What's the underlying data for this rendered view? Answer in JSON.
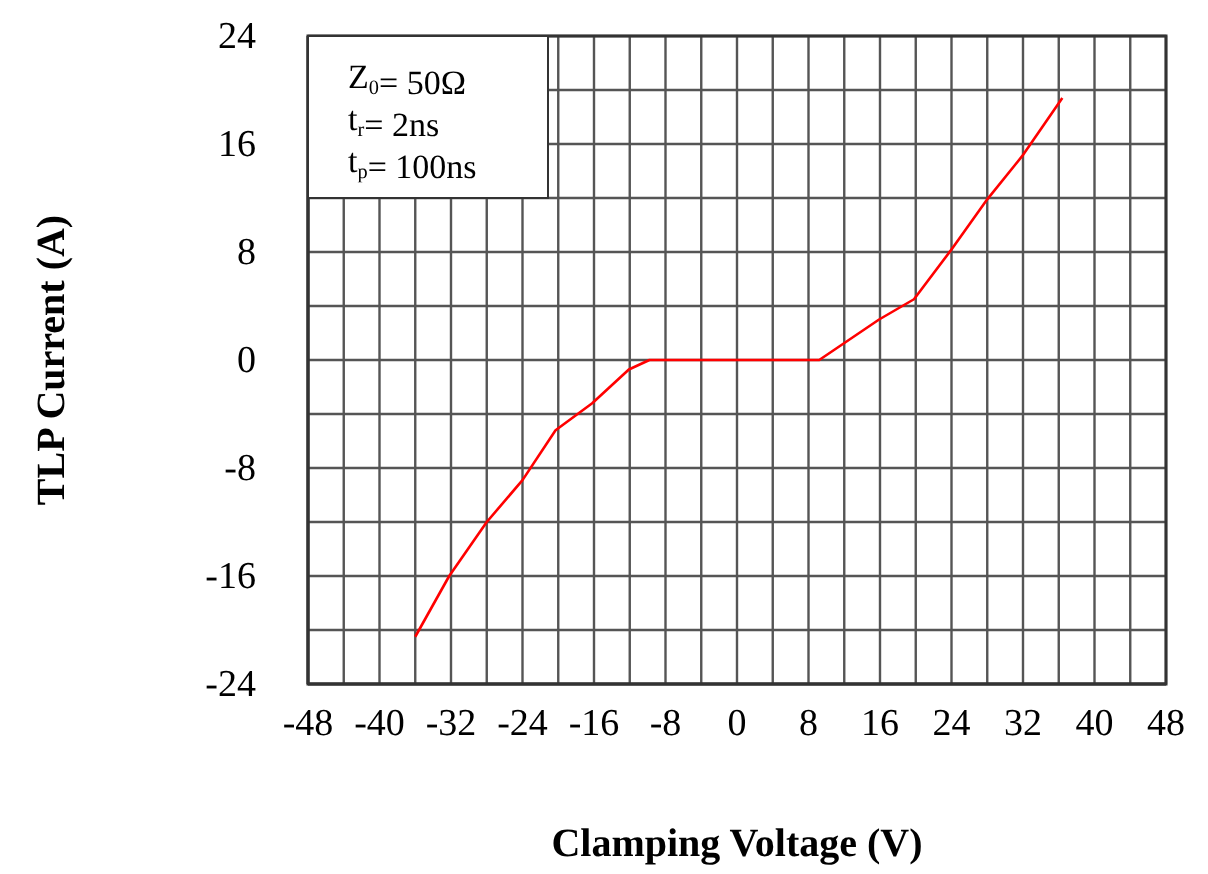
{
  "chart_data": {
    "type": "line",
    "xlabel": "Clamping Voltage (V)",
    "ylabel": "TLP Current (A)",
    "xlim": [
      -48,
      48
    ],
    "ylim": [
      -24,
      24
    ],
    "xticks": [
      -48,
      {
        "value": -44,
        "label": null
      },
      -40,
      {
        "value": -36,
        "label": null
      },
      -32,
      {
        "value": -28,
        "label": null
      },
      -24,
      {
        "value": -20,
        "label": null
      },
      -16,
      {
        "value": -12,
        "label": null
      },
      -8,
      {
        "value": -4,
        "label": null
      },
      0,
      {
        "value": 4,
        "label": null
      },
      8,
      {
        "value": 12,
        "label": null
      },
      16,
      {
        "value": 20,
        "label": null
      },
      24,
      {
        "value": 28,
        "label": null
      },
      32,
      {
        "value": 36,
        "label": null
      },
      40,
      {
        "value": 44,
        "label": null
      },
      48
    ],
    "yticks": [
      -24,
      {
        "value": -20,
        "label": null
      },
      -16,
      {
        "value": -12,
        "label": null
      },
      -8,
      {
        "value": -4,
        "label": null
      },
      0,
      {
        "value": 4,
        "label": null
      },
      8,
      {
        "value": 12,
        "label": null
      },
      16,
      {
        "value": 20,
        "label": null
      },
      24
    ],
    "grid": true,
    "marker": "none",
    "line_style": "solid",
    "series": [
      {
        "color": "#ff0000",
        "x": [
          -36,
          -32.2,
          -28,
          -24,
          -20.3,
          -16.2,
          -12.1,
          -9.8,
          0,
          9.2,
          15.9,
          19.8,
          23.9,
          28,
          31.9,
          36.4
        ],
        "values": [
          -20.5,
          -16,
          -12,
          -8.9,
          -5.2,
          -3.2,
          -0.7,
          0,
          0,
          0,
          3,
          4.5,
          8.1,
          11.9,
          15.1,
          19.4
        ]
      }
    ],
    "annotations": [
      "Z$_{0}$= 50Ω",
      "t$_{r}$= 2ns",
      "t$_{p}$= 100ns"
    ]
  }
}
